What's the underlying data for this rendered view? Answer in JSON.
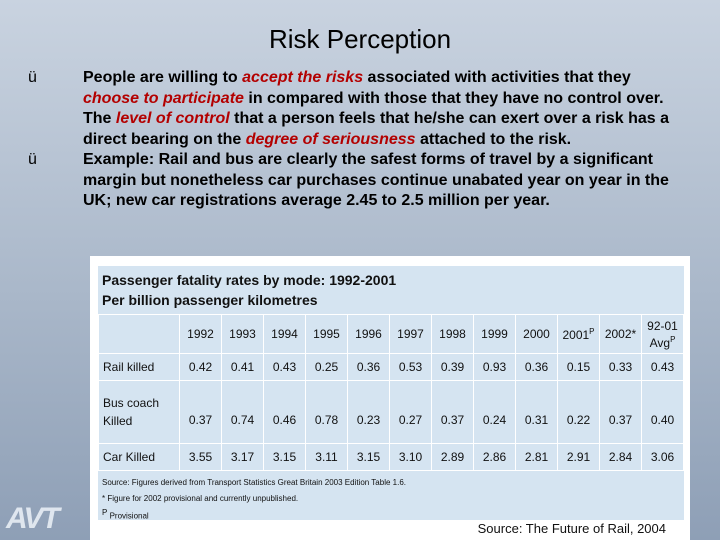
{
  "title": "Risk Perception",
  "bullets": {
    "mark": "ü",
    "b1": {
      "t1": "People are willing to ",
      "h1": "accept the risks",
      "t2": " associated with activities that they ",
      "h2": "choose to participate",
      "t3": " in compared with those that they have no control over. The ",
      "h3": "level of control",
      "t4": " that a person feels that he/she can exert over a risk has a direct bearing on the ",
      "h4": "degree of seriousness",
      "t5": " attached to the risk."
    },
    "b2": "Example: Rail and bus are clearly the safest forms of travel by a significant margin but nonetheless car purchases continue unabated year on year in the UK; new car registrations average 2.45 to 2.5 million per year."
  },
  "table": {
    "heading1": "Passenger fatality rates by mode: 1992-2001",
    "heading2": "Per billion passenger kilometres",
    "years": [
      "1992",
      "1993",
      "1994",
      "1995",
      "1996",
      "1997",
      "1998",
      "1999",
      "2000",
      "2001",
      "2002*",
      "92-01"
    ],
    "year_sup": [
      "",
      "",
      "",
      "",
      "",
      "",
      "",
      "",
      "",
      "P",
      "",
      ""
    ],
    "avg_label": "Avg",
    "avg_sup": "P",
    "rows": [
      {
        "label1": "Rail killed",
        "label2": "",
        "values": [
          "0.42",
          "0.41",
          "0.43",
          "0.25",
          "0.36",
          "0.53",
          "0.39",
          "0.93",
          "0.36",
          "0.15",
          "0.33",
          "0.43"
        ]
      },
      {
        "label1": "Bus coach",
        "label2": "Killed",
        "values": [
          "0.37",
          "0.74",
          "0.46",
          "0.78",
          "0.23",
          "0.27",
          "0.37",
          "0.24",
          "0.31",
          "0.22",
          "0.37",
          "0.40"
        ]
      },
      {
        "label1": "Car Killed",
        "label2": "",
        "values": [
          "3.55",
          "3.17",
          "3.15",
          "3.11",
          "3.15",
          "3.10",
          "2.89",
          "2.86",
          "2.81",
          "2.91",
          "2.84",
          "3.06"
        ]
      }
    ],
    "footnote1": "Source: Figures derived from Transport Statistics Great Britain 2003 Edition Table 1.6.",
    "footnote2": "* Figure for 2002 provisional and currently unpublished.",
    "footnote3_sup": "P",
    "footnote3": " Provisional"
  },
  "source": "Source: The Future of Rail, 2004",
  "logo": "AVT"
}
